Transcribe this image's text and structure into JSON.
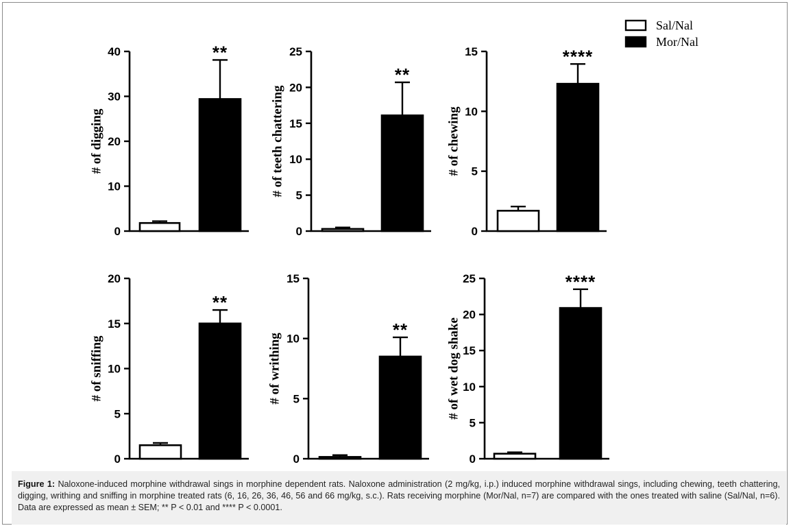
{
  "legend": {
    "items": [
      {
        "label": "Sal/Nal",
        "fill": "#ffffff"
      },
      {
        "label": "Mor/Nal",
        "fill": "#000000"
      }
    ]
  },
  "caption": {
    "label": "Figure 1:",
    "text": "Naloxone-induced morphine withdrawal sings in morphine dependent rats. Naloxone administration (2 mg/kg, i.p.) induced morphine withdrawal sings, including chewing, teeth chattering, digging, writhing and sniffing in morphine treated rats (6, 16, 26, 36, 46, 56 and 66 mg/kg, s.c.). Rats receiving morphine (Mor/Nal, n=7) are compared with the ones treated with saline (Sal/Nal, n=6). Data are expressed as mean ± SEM; ** P < 0.01 and **** P < 0.0001."
  },
  "colors": {
    "sal_fill": "#ffffff",
    "mor_fill": "#000000",
    "stroke": "#000000",
    "caption_bg": "#f0f0f0"
  },
  "chart_data": [
    {
      "type": "bar",
      "ylabel": "# of digging",
      "categories": [
        "Sal/Nal",
        "Mor/Nal"
      ],
      "values": [
        1.8,
        29.4
      ],
      "sem": [
        0.4,
        8.7
      ],
      "ylim": [
        0,
        40
      ],
      "yticks": [
        0,
        10,
        20,
        30,
        40
      ],
      "significance": "**"
    },
    {
      "type": "bar",
      "ylabel": "# of teeth chattering",
      "categories": [
        "Sal/Nal",
        "Mor/Nal"
      ],
      "values": [
        0.3,
        16.1
      ],
      "sem": [
        0.2,
        4.6
      ],
      "ylim": [
        0,
        25
      ],
      "yticks": [
        0,
        5,
        10,
        15,
        20,
        25
      ],
      "significance": "**"
    },
    {
      "type": "bar",
      "ylabel": "# of chewing",
      "categories": [
        "Sal/Nal",
        "Mor/Nal"
      ],
      "values": [
        1.7,
        12.3
      ],
      "sem": [
        0.35,
        1.65
      ],
      "ylim": [
        0,
        15
      ],
      "yticks": [
        0,
        5,
        10,
        15
      ],
      "significance": "****"
    },
    {
      "type": "bar",
      "ylabel": "# of sniffing",
      "categories": [
        "Sal/Nal",
        "Mor/Nal"
      ],
      "values": [
        1.5,
        15.0
      ],
      "sem": [
        0.25,
        1.5
      ],
      "ylim": [
        0,
        20
      ],
      "yticks": [
        0,
        5,
        10,
        15,
        20
      ],
      "significance": "**"
    },
    {
      "type": "bar",
      "ylabel": "# of writhing",
      "categories": [
        "Sal/Nal",
        "Mor/Nal"
      ],
      "values": [
        0.15,
        8.5
      ],
      "sem": [
        0.15,
        1.6
      ],
      "ylim": [
        0,
        15
      ],
      "yticks": [
        0,
        5,
        10,
        15
      ],
      "significance": "**"
    },
    {
      "type": "bar",
      "ylabel": "# of wet dog shake",
      "categories": [
        "Sal/Nal",
        "Mor/Nal"
      ],
      "values": [
        0.7,
        20.9
      ],
      "sem": [
        0.2,
        2.6
      ],
      "ylim": [
        0,
        25
      ],
      "yticks": [
        0,
        5,
        10,
        15,
        20,
        25
      ],
      "significance": "****"
    }
  ]
}
